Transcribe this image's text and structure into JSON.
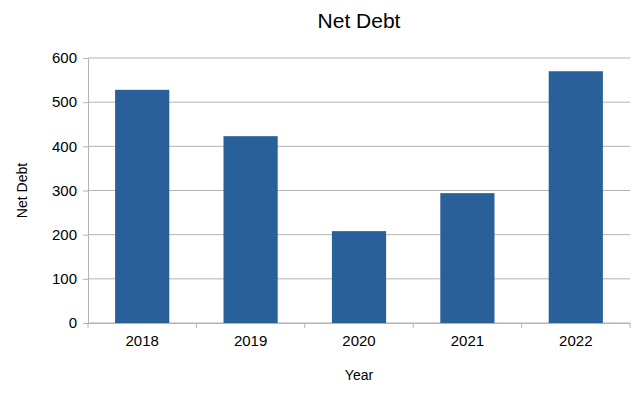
{
  "chart_data": {
    "type": "bar",
    "title": "Net Debt",
    "x_label": "Year",
    "y_label": "Net Debt",
    "categories": [
      "2018",
      "2019",
      "2020",
      "2021",
      "2022"
    ],
    "values": [
      528,
      423,
      208,
      294,
      570
    ],
    "color": "#2a6099",
    "ylim": [
      0,
      600
    ],
    "yticks": [
      0,
      100,
      200,
      300,
      400,
      500,
      600
    ],
    "grid": true
  }
}
